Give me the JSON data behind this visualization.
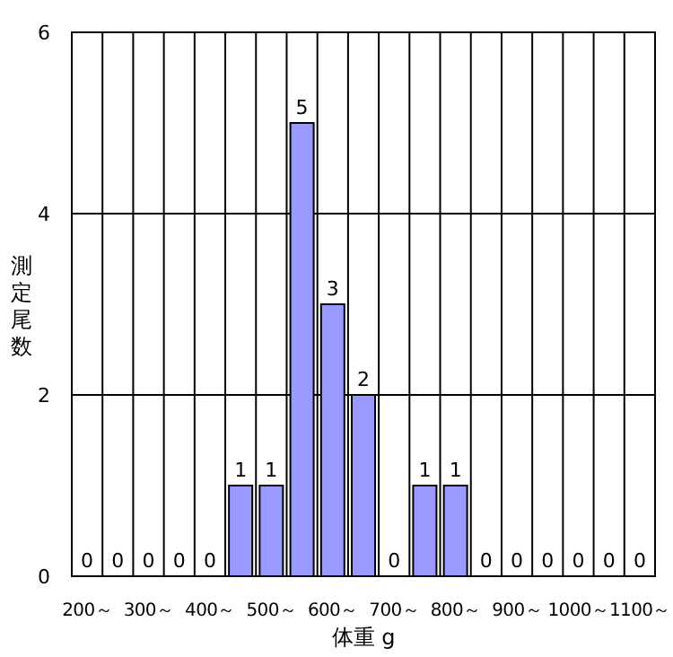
{
  "chart_data": {
    "type": "bar",
    "xlabel": "体重 g",
    "ylabel": "測定尾数",
    "categories": [
      "200～",
      null,
      "300～",
      null,
      "400～",
      null,
      "500～",
      null,
      "600～",
      null,
      "700～",
      null,
      "800～",
      null,
      "900～",
      null,
      "1000～",
      null,
      "1100～"
    ],
    "values": [
      0,
      0,
      0,
      0,
      0,
      1,
      1,
      5,
      3,
      2,
      0,
      1,
      1,
      0,
      0,
      0,
      0,
      0,
      0
    ],
    "color": "#9999ff",
    "ylim": [
      0,
      6
    ],
    "yticks": [
      0,
      2,
      4,
      6
    ],
    "grid": true,
    "data_labels": true
  }
}
